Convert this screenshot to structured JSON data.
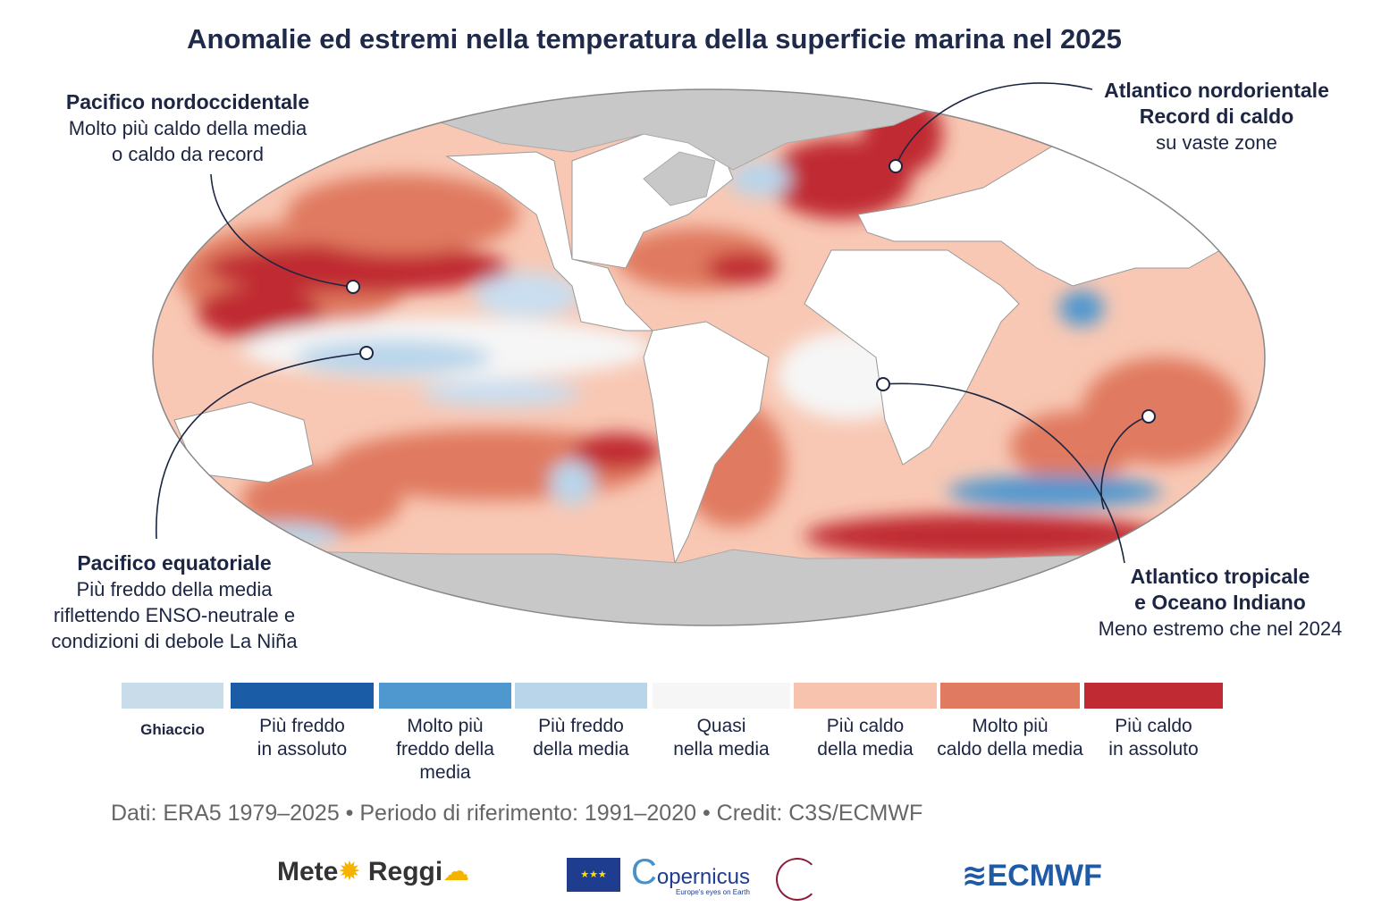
{
  "title": "Anomalie ed estremi nella temperatura della superficie marina nel 2025",
  "annotations": [
    {
      "heading": "Pacifico nordoccidentale",
      "lines": [
        "Molto più caldo della media",
        "o caldo da record"
      ]
    },
    {
      "heading": "Atlantico nordorientale",
      "subheading": "Record di caldo",
      "lines": [
        "su vaste zone"
      ]
    },
    {
      "heading": "Pacifico equatoriale",
      "lines": [
        "Più freddo della media",
        "riflettendo ENSO-neutrale e",
        "condizioni di debole La Niña"
      ]
    },
    {
      "heading": "Atlantico tropicale",
      "subheading": "e Oceano Indiano",
      "lines": [
        "Meno estremo che nel 2024"
      ]
    }
  ],
  "legend": [
    {
      "label1": "Ghiaccio",
      "label2": "",
      "label3": "",
      "color": "#c8dcea"
    },
    {
      "label1": "Più freddo",
      "label2": "in assoluto",
      "label3": "",
      "color": "#1a5ca6"
    },
    {
      "label1": "Molto più",
      "label2": "freddo della",
      "label3": "media",
      "color": "#4f97cf"
    },
    {
      "label1": "Più freddo",
      "label2": "della media",
      "label3": "",
      "color": "#b9d5ea"
    },
    {
      "label1": "Quasi",
      "label2": "nella media",
      "label3": "",
      "color": "#f6f6f6"
    },
    {
      "label1": "Più caldo",
      "label2": "della media",
      "label3": "",
      "color": "#f8c3ae"
    },
    {
      "label1": "Molto più",
      "label2": "caldo della media",
      "label3": "",
      "color": "#e07a61"
    },
    {
      "label1": "Più caldo",
      "label2": "in assoluto",
      "label3": "",
      "color": "#c02a33"
    }
  ],
  "credit": "Dati: ERA5 1979–2025 • Periodo di riferimento: 1991–2020 • Credit: C3S/ECMWF",
  "logos": {
    "meteo1": "Mete",
    "meteo2": "Reggi",
    "copernicus": "opernicus",
    "copernicus_c": "C",
    "copernicus_tag": "Europe's eyes on Earth",
    "ecmwf": "ECMWF"
  }
}
